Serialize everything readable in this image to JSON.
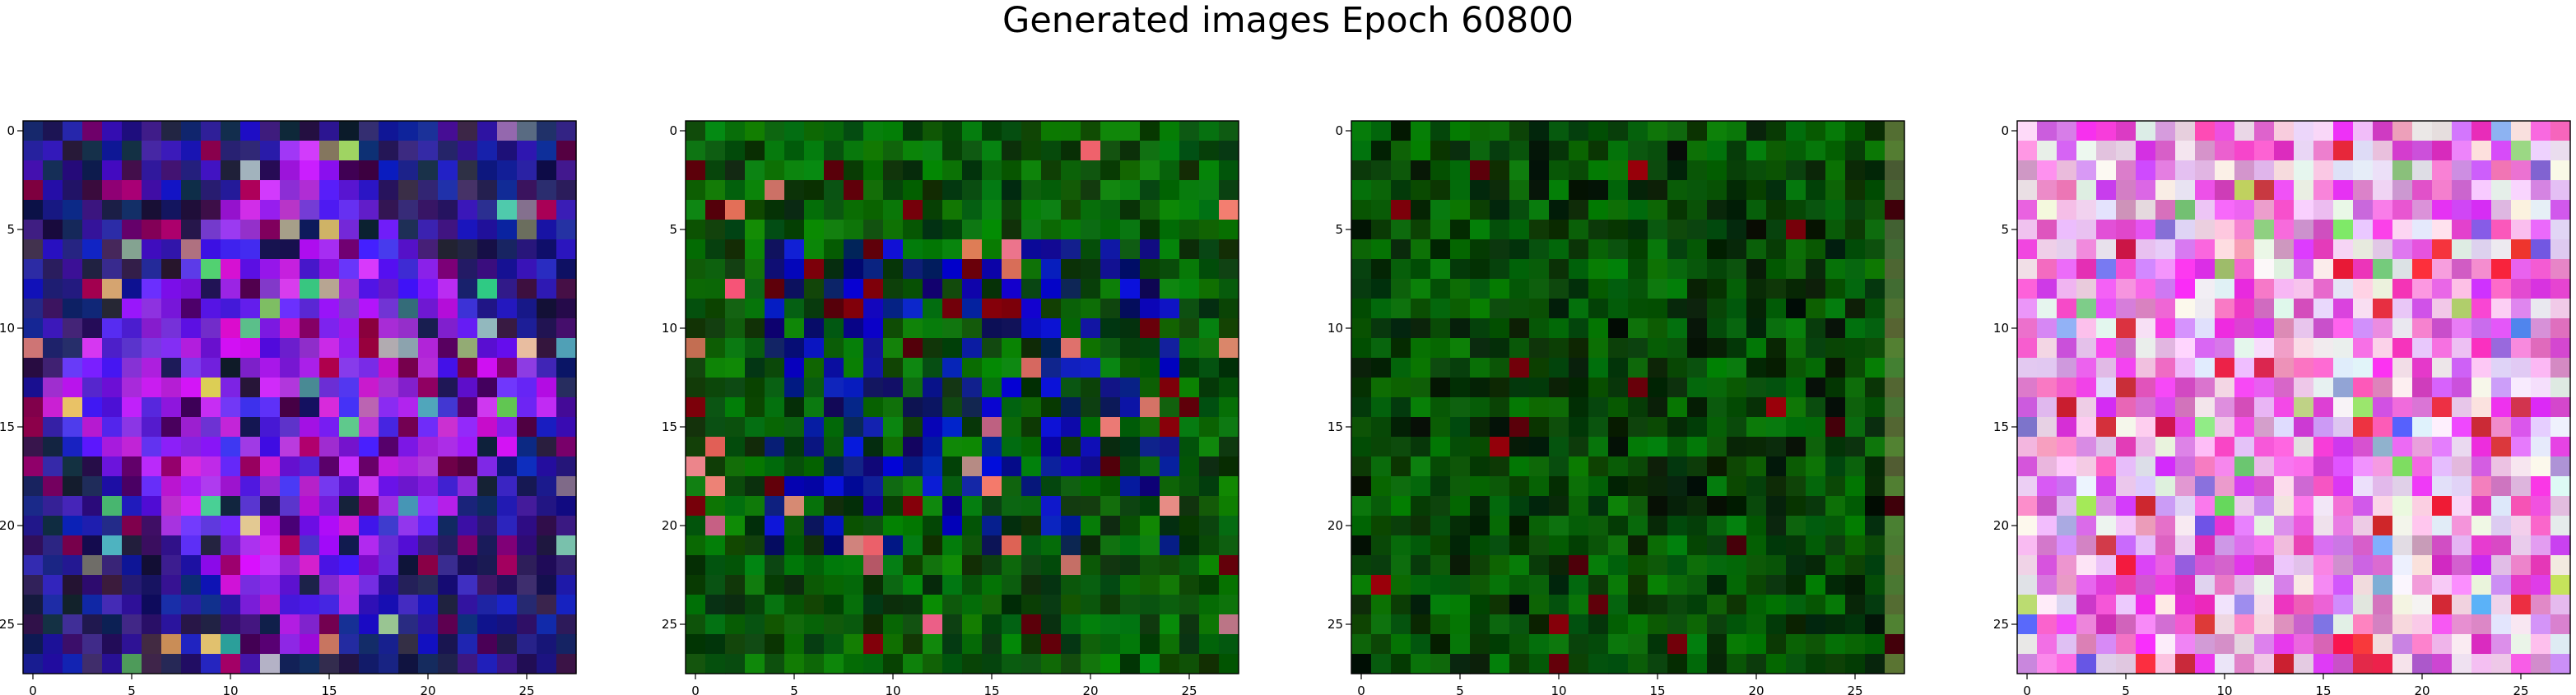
{
  "figure": {
    "title": "Generated images Epoch 60800"
  },
  "axes": {
    "x_ticks": [
      "0",
      "5",
      "10",
      "15",
      "20",
      "25"
    ],
    "y_ticks": [
      "0",
      "5",
      "10",
      "15",
      "20",
      "25"
    ]
  },
  "images": [
    {
      "id": "image-1",
      "grid": [
        28,
        28
      ],
      "palette": "blue-purple noise"
    },
    {
      "id": "image-2",
      "grid": [
        28,
        28
      ],
      "palette": "green-blue noise"
    },
    {
      "id": "image-3",
      "grid": [
        28,
        28
      ],
      "palette": "dark green noise"
    },
    {
      "id": "image-4",
      "grid": [
        28,
        28
      ],
      "palette": "pink-magenta noise"
    }
  ]
}
